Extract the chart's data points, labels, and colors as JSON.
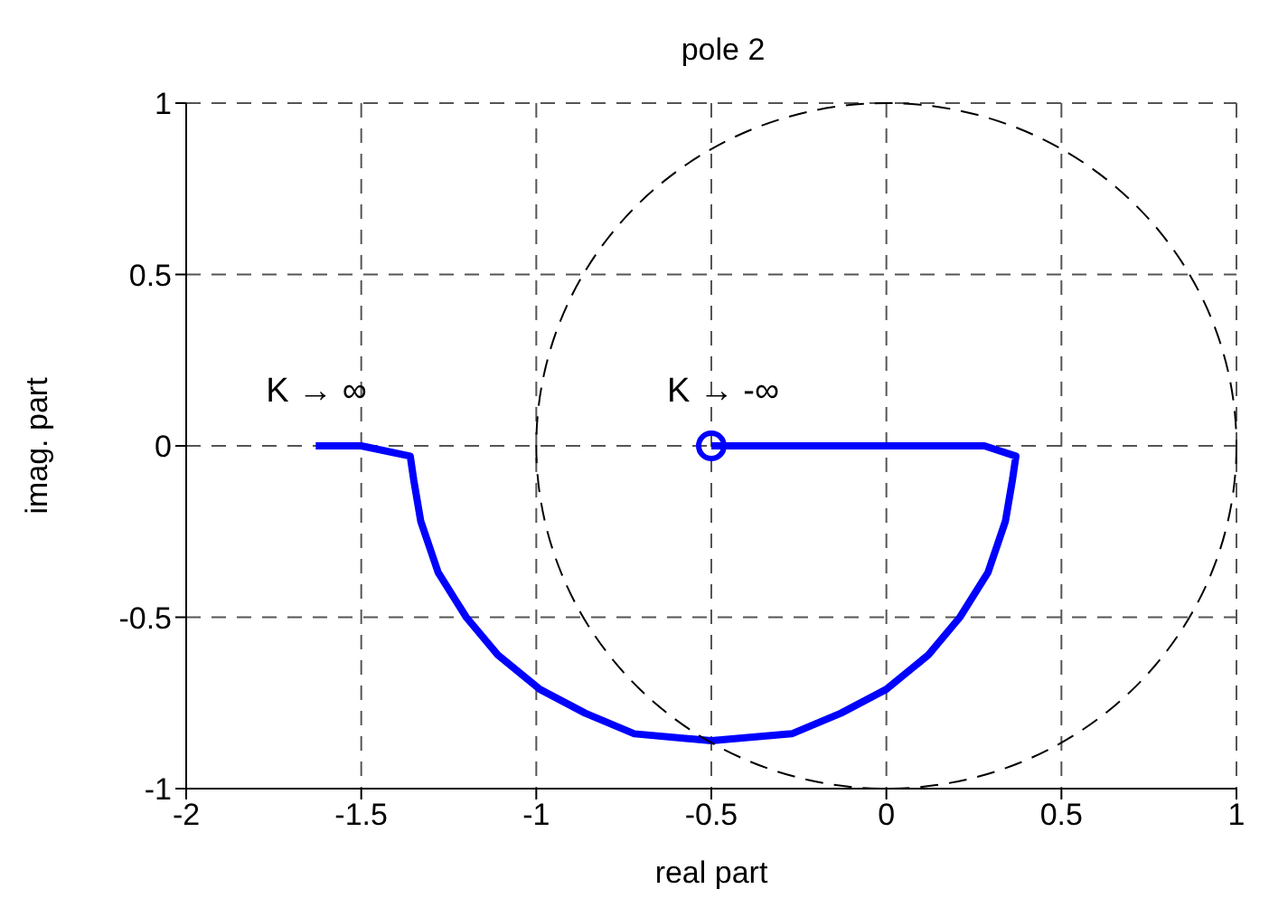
{
  "chart_data": {
    "type": "line",
    "title": "pole 2",
    "xlabel": "real part",
    "ylabel": "imag. part",
    "xlim": [
      -2,
      1
    ],
    "xticks": [
      -2,
      -1.5,
      -1,
      -0.5,
      0,
      0.5,
      1
    ],
    "ylim": [
      -1,
      1
    ],
    "yticks": [
      -1,
      -0.5,
      0,
      0.5,
      1
    ],
    "grid": true,
    "series": [
      {
        "color": "#0000ff",
        "line_style": "solid",
        "x": [
          -1.63,
          -1.5,
          -1.36,
          -1.35,
          -1.33,
          -1.28,
          -1.2,
          -1.11,
          -0.99,
          -0.86,
          -0.72,
          -0.5,
          -0.27,
          -0.13,
          0,
          0.12,
          0.21,
          0.29,
          0.34,
          0.36,
          0.37,
          0.28,
          -0.5
        ],
        "values": [
          0,
          0,
          -0.03,
          -0.1,
          -0.22,
          -0.37,
          -0.5,
          -0.61,
          -0.71,
          -0.78,
          -0.84,
          -0.86,
          -0.84,
          -0.78,
          -0.71,
          -0.61,
          -0.5,
          -0.37,
          -0.22,
          -0.1,
          -0.03,
          0,
          0
        ]
      },
      {
        "type": "scatter",
        "color": "#0000ff",
        "marker": "circle",
        "x": [
          -0.5
        ],
        "values": [
          0
        ]
      }
    ],
    "annotations": [
      "K → ∞",
      "K → -∞"
    ]
  }
}
